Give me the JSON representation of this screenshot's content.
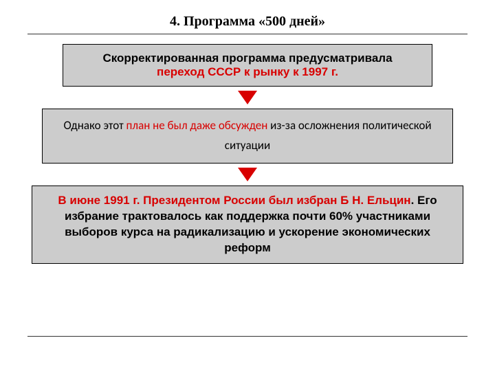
{
  "title": "4. Программа «500 дней»",
  "box1": {
    "line1": "Скорректированная программа предусматривала",
    "line2_red": "переход СССР к рынку к 1997 г."
  },
  "box2": {
    "pre": "Однако этот ",
    "red": "план не был даже обсужден ",
    "post": "из-за осложнения политической ситуации"
  },
  "box3": {
    "line1_red": "В июне 1991 г. Президентом России был избран Б Н. Ельцин",
    "rest": ". Его избрание трактовалось как поддержка почти 60% участниками  выборов курса на радикализацию и ускорение экономических реформ"
  },
  "colors": {
    "box_bg": "#cccccc",
    "box_border": "#000000",
    "red": "#d80000",
    "arrow": "#d80000",
    "background": "#ffffff"
  }
}
